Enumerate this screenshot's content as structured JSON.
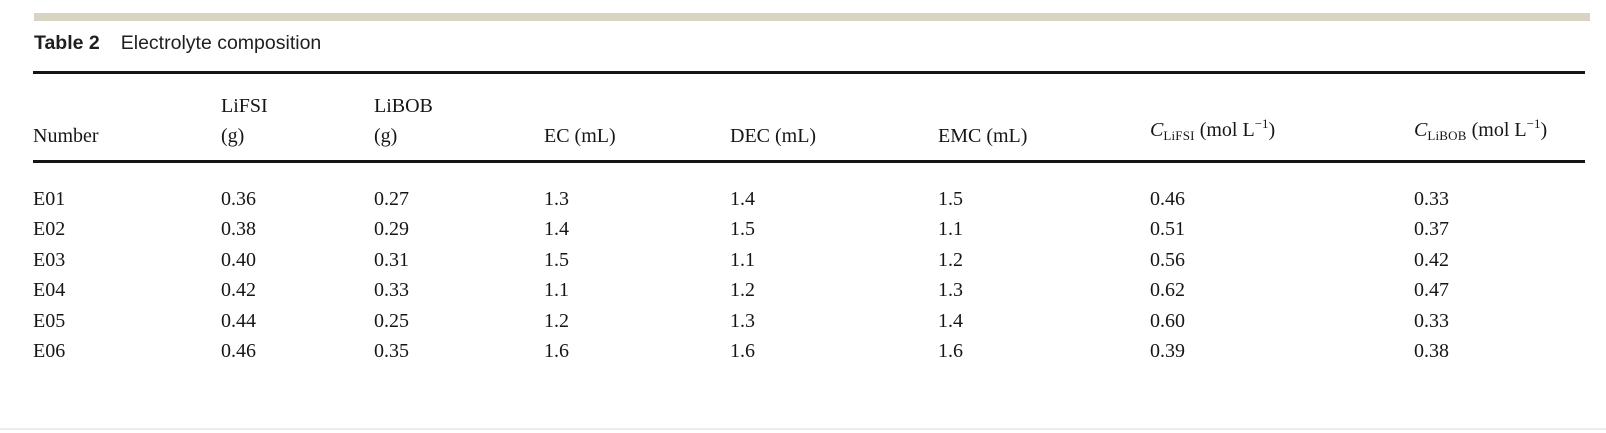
{
  "title": {
    "label": "Table 2",
    "text": "Electrolyte composition"
  },
  "table": {
    "columns": {
      "number": "Number",
      "lifsi_line1": "LiFSI",
      "lifsi_line2": "(g)",
      "libob_line1": "LiBOB",
      "libob_line2": "(g)",
      "ec": "EC (mL)",
      "dec": "DEC (mL)",
      "emc": "EMC (mL)",
      "c_lifsi": {
        "symbol": "C",
        "sub": "LiFSI",
        "unit_open": " (mol L",
        "sup": "−1",
        "unit_close": ")"
      },
      "c_libob": {
        "symbol": "C",
        "sub": "LiBOB",
        "unit_open": " (mol L",
        "sup": "−1",
        "unit_close": ")"
      }
    },
    "rows": [
      [
        "E01",
        "0.36",
        "0.27",
        "1.3",
        "1.4",
        "1.5",
        "0.46",
        "0.33"
      ],
      [
        "E02",
        "0.38",
        "0.29",
        "1.4",
        "1.5",
        "1.1",
        "0.51",
        "0.37"
      ],
      [
        "E03",
        "0.40",
        "0.31",
        "1.5",
        "1.1",
        "1.2",
        "0.56",
        "0.42"
      ],
      [
        "E04",
        "0.42",
        "0.33",
        "1.1",
        "1.2",
        "1.3",
        "0.62",
        "0.47"
      ],
      [
        "E05",
        "0.44",
        "0.25",
        "1.2",
        "1.3",
        "1.4",
        "0.60",
        "0.33"
      ],
      [
        "E06",
        "0.46",
        "0.35",
        "1.6",
        "1.6",
        "1.6",
        "0.39",
        "0.38"
      ]
    ]
  },
  "colors": {
    "accent_bar": "#d9d3c1",
    "table_rule": "#141414",
    "bottom_divider": "#ececec",
    "text": "#161616"
  }
}
